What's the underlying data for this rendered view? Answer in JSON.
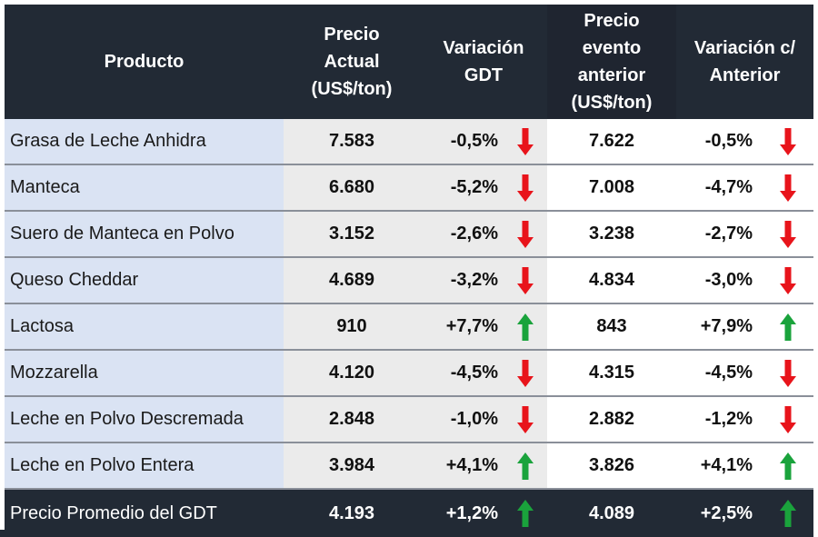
{
  "header": {
    "producto": "Producto",
    "precio_actual": [
      "Precio",
      "Actual",
      "(US$/ton)"
    ],
    "variacion_gdt": [
      "Variación",
      "GDT"
    ],
    "precio_anterior": [
      "Precio",
      "evento",
      "anterior",
      "(US$/ton)"
    ],
    "variacion_anterior": [
      "Variación c/",
      "Anterior"
    ]
  },
  "colors": {
    "down": "#e8141b",
    "up": "#1aa33c",
    "header_bg": "#222a35",
    "product_bg": "#dae3f3",
    "price_bg": "#ebebeb"
  },
  "rows": [
    {
      "producto": "Grasa de Leche Anhidra",
      "precio": "7.583",
      "var_gdt": "-0,5%",
      "dir_gdt": "down",
      "precio_ant": "7.622",
      "var_ant": "-0,5%",
      "dir_ant": "down"
    },
    {
      "producto": "Manteca",
      "precio": "6.680",
      "var_gdt": "-5,2%",
      "dir_gdt": "down",
      "precio_ant": "7.008",
      "var_ant": "-4,7%",
      "dir_ant": "down"
    },
    {
      "producto": "Suero de Manteca en Polvo",
      "precio": "3.152",
      "var_gdt": "-2,6%",
      "dir_gdt": "down",
      "precio_ant": "3.238",
      "var_ant": "-2,7%",
      "dir_ant": "down"
    },
    {
      "producto": "Queso Cheddar",
      "precio": "4.689",
      "var_gdt": "-3,2%",
      "dir_gdt": "down",
      "precio_ant": "4.834",
      "var_ant": "-3,0%",
      "dir_ant": "down"
    },
    {
      "producto": "Lactosa",
      "precio": "910",
      "var_gdt": "+7,7%",
      "dir_gdt": "up",
      "precio_ant": "843",
      "var_ant": "+7,9%",
      "dir_ant": "up"
    },
    {
      "producto": "Mozzarella",
      "precio": "4.120",
      "var_gdt": "-4,5%",
      "dir_gdt": "down",
      "precio_ant": "4.315",
      "var_ant": "-4,5%",
      "dir_ant": "down"
    },
    {
      "producto": "Leche en Polvo Descremada",
      "precio": "2.848",
      "var_gdt": "-1,0%",
      "dir_gdt": "down",
      "precio_ant": "2.882",
      "var_ant": "-1,2%",
      "dir_ant": "down"
    },
    {
      "producto": "Leche en Polvo Entera",
      "precio": "3.984",
      "var_gdt": "+4,1%",
      "dir_gdt": "up",
      "precio_ant": "3.826",
      "var_ant": "+4,1%",
      "dir_ant": "up"
    }
  ],
  "average": {
    "producto": "Precio Promedio del GDT",
    "precio": "4.193",
    "var_gdt": "+1,2%",
    "dir_gdt": "up",
    "precio_ant": "4.089",
    "var_ant": "+2,5%",
    "dir_ant": "up"
  }
}
